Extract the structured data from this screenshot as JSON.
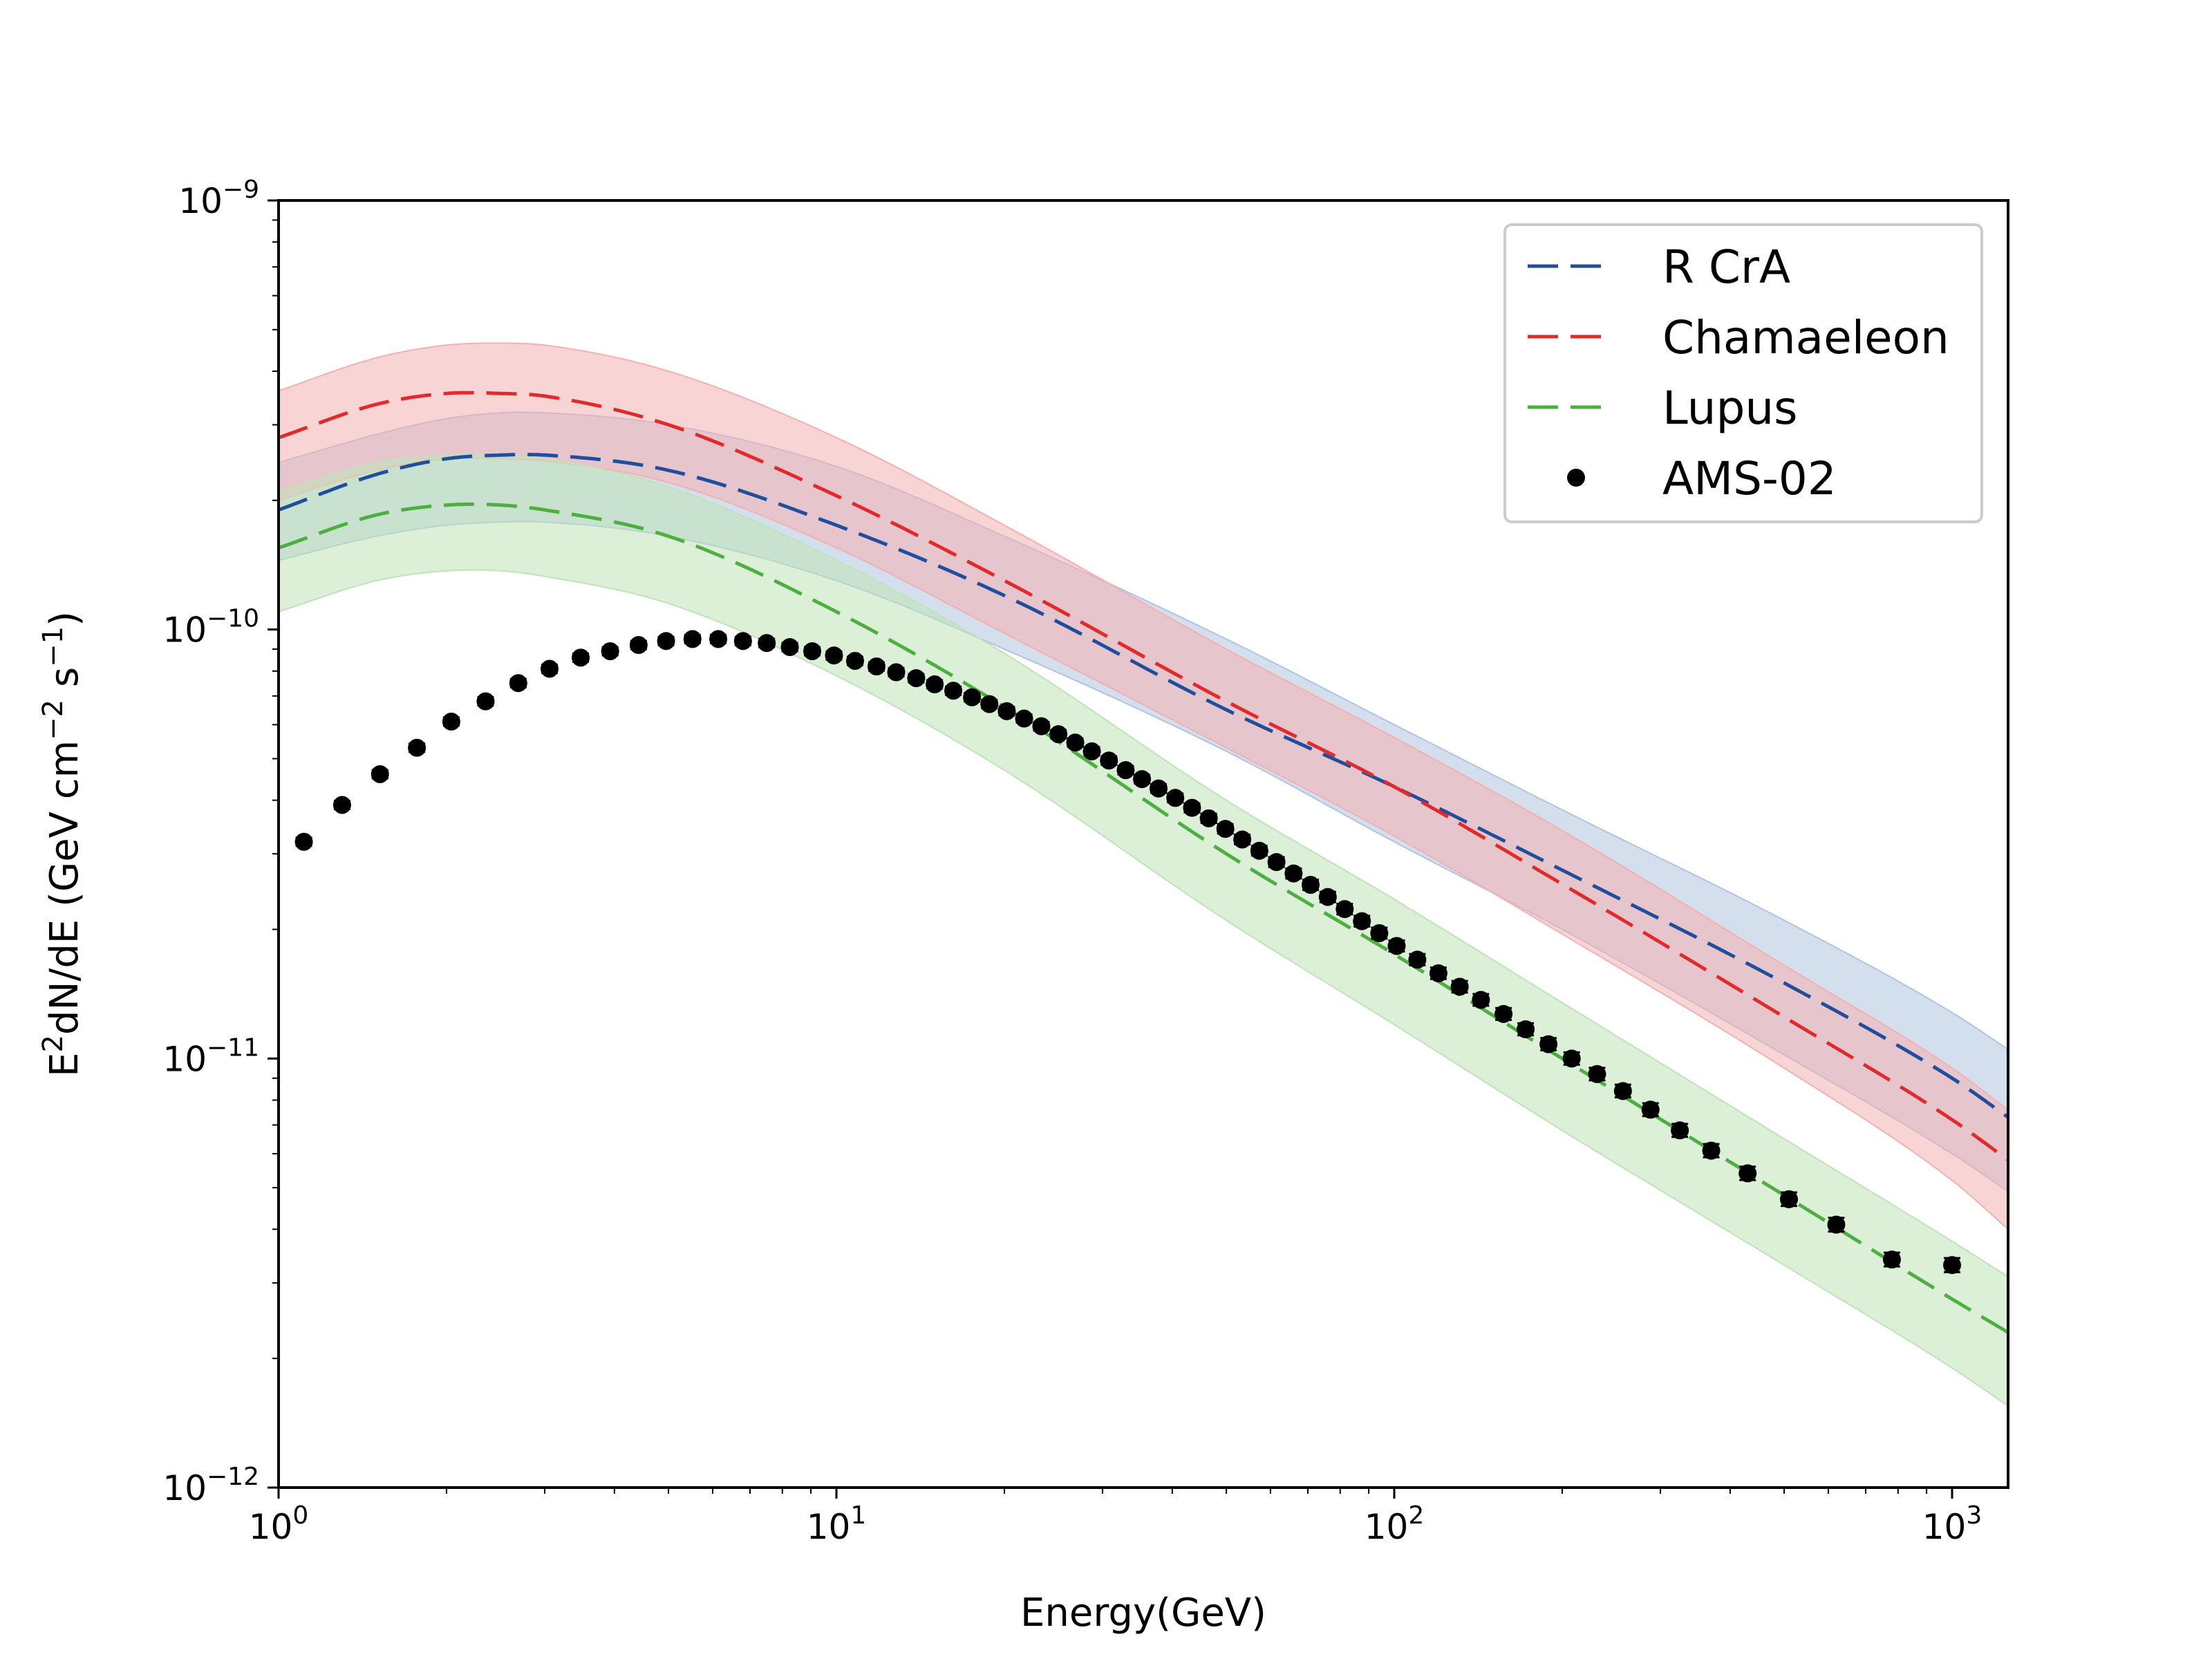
{
  "chart_data": {
    "type": "line",
    "xscale": "log",
    "yscale": "log",
    "xlabel": "Energy(GeV)",
    "ylabel": {
      "base": "E",
      "sup1": "2",
      "mid": "dN/dE (GeV cm",
      "sup2": "−2",
      "mid2": " s",
      "sup3": "−1",
      "end": ")"
    },
    "xlim": [
      1,
      1260
    ],
    "ylim": [
      1e-12,
      1e-09
    ],
    "xticks": [
      {
        "value": 1,
        "base": "10",
        "exp": "0"
      },
      {
        "value": 10,
        "base": "10",
        "exp": "1"
      },
      {
        "value": 100,
        "base": "10",
        "exp": "2"
      },
      {
        "value": 1000,
        "base": "10",
        "exp": "3"
      }
    ],
    "yticks": [
      {
        "value": 1e-12,
        "base": "10",
        "exp": "−12"
      },
      {
        "value": 1e-11,
        "base": "10",
        "exp": "−11"
      },
      {
        "value": 1e-10,
        "base": "10",
        "exp": "−10"
      },
      {
        "value": 1e-09,
        "base": "10",
        "exp": "−9"
      }
    ],
    "legend_position": "top-right",
    "series": [
      {
        "name": "R CrA",
        "color": "#1f4e9c",
        "band_color": "#b0c4e0",
        "x": [
          1,
          1.5,
          2,
          2.5,
          3,
          5,
          10,
          20,
          50,
          100,
          200,
          500,
          1000,
          1260
        ],
        "y": [
          1.9e-10,
          2.3e-10,
          2.5e-10,
          2.55e-10,
          2.55e-10,
          2.35e-10,
          1.75e-10,
          1.2e-10,
          6.5e-11,
          4.3e-11,
          2.75e-11,
          1.5e-11,
          9e-12,
          7.3e-12
        ],
        "y_low": [
          1.45e-10,
          1.65e-10,
          1.75e-10,
          1.78e-10,
          1.78e-10,
          1.65e-10,
          1.3e-10,
          9e-11,
          5.2e-11,
          3.2e-11,
          2e-11,
          1.02e-11,
          6e-12,
          4.9e-12
        ],
        "y_high": [
          2.45e-10,
          2.85e-10,
          3.1e-10,
          3.2e-10,
          3.2e-10,
          3e-10,
          2.4e-10,
          1.65e-10,
          9.5e-11,
          6e-11,
          3.8e-11,
          2.1e-11,
          1.28e-11,
          1.05e-11
        ]
      },
      {
        "name": "Chamaeleon",
        "color": "#e32a2a",
        "band_color": "#f4b0b0",
        "x": [
          1,
          1.5,
          2,
          2.5,
          3,
          5,
          10,
          20,
          50,
          100,
          200,
          500,
          1000,
          1260
        ],
        "y": [
          2.8e-10,
          3.35e-10,
          3.55e-10,
          3.55e-10,
          3.5e-10,
          3e-10,
          2.05e-10,
          1.3e-10,
          6.8e-11,
          4.3e-11,
          2.55e-11,
          1.25e-11,
          7.2e-12,
          5.8e-12
        ],
        "y_low": [
          2e-10,
          2.35e-10,
          2.5e-10,
          2.5e-10,
          2.47e-10,
          2.2e-10,
          1.55e-10,
          9.8e-11,
          5.3e-11,
          3.3e-11,
          1.95e-11,
          9.5e-12,
          5.2e-12,
          4e-12
        ],
        "y_high": [
          3.6e-10,
          4.3e-10,
          4.6e-10,
          4.65e-10,
          4.6e-10,
          4e-10,
          2.8e-10,
          1.75e-10,
          9e-11,
          5.6e-11,
          3.4e-11,
          1.65e-11,
          9.5e-12,
          7.6e-12
        ]
      },
      {
        "name": "Lupus",
        "color": "#4caf3f",
        "band_color": "#bfe3b8",
        "x": [
          1,
          1.5,
          2,
          2.5,
          3,
          5,
          10,
          20,
          50,
          100,
          200,
          500,
          1000,
          1260
        ],
        "y": [
          1.55e-10,
          1.85e-10,
          1.95e-10,
          1.95e-10,
          1.9e-10,
          1.65e-10,
          1.1e-10,
          6.6e-11,
          3e-11,
          1.75e-11,
          1e-11,
          4.8e-12,
          2.75e-12,
          2.3e-12
        ],
        "y_low": [
          1.1e-10,
          1.3e-10,
          1.37e-10,
          1.37e-10,
          1.33e-10,
          1.15e-10,
          7.8e-11,
          4.7e-11,
          2.1e-11,
          1.2e-11,
          6.8e-12,
          3.3e-12,
          1.9e-12,
          1.55e-12
        ],
        "y_high": [
          2.1e-10,
          2.45e-10,
          2.55e-10,
          2.55e-10,
          2.5e-10,
          2.15e-10,
          1.45e-10,
          8.8e-11,
          4e-11,
          2.35e-11,
          1.35e-11,
          6.5e-12,
          3.75e-12,
          3.1e-12
        ]
      }
    ],
    "points": {
      "name": "AMS-02",
      "color": "#000000",
      "x": [
        1.11,
        1.3,
        1.52,
        1.77,
        2.04,
        2.35,
        2.69,
        3.06,
        3.48,
        3.93,
        4.42,
        4.95,
        5.52,
        6.14,
        6.8,
        7.5,
        8.25,
        9.05,
        9.9,
        10.8,
        11.8,
        12.8,
        13.9,
        15.0,
        16.2,
        17.5,
        18.8,
        20.2,
        21.7,
        23.3,
        25.0,
        26.8,
        28.7,
        30.8,
        33.0,
        35.3,
        37.8,
        40.5,
        43.4,
        46.5,
        49.8,
        53.4,
        57.3,
        61.5,
        66.0,
        70.8,
        76.0,
        81.5,
        87.5,
        94.0,
        101,
        110,
        120,
        131,
        143,
        157,
        172,
        189,
        208,
        231,
        257,
        288,
        325,
        370,
        430,
        510,
        620,
        780,
        1000
      ],
      "y": [
        3.2e-11,
        3.9e-11,
        4.6e-11,
        5.3e-11,
        6.1e-11,
        6.8e-11,
        7.5e-11,
        8.1e-11,
        8.6e-11,
        8.9e-11,
        9.2e-11,
        9.4e-11,
        9.5e-11,
        9.5e-11,
        9.4e-11,
        9.3e-11,
        9.1e-11,
        8.9e-11,
        8.7e-11,
        8.45e-11,
        8.2e-11,
        7.95e-11,
        7.7e-11,
        7.45e-11,
        7.2e-11,
        6.95e-11,
        6.7e-11,
        6.45e-11,
        6.2e-11,
        5.95e-11,
        5.7e-11,
        5.45e-11,
        5.2e-11,
        4.95e-11,
        4.7e-11,
        4.48e-11,
        4.26e-11,
        4.05e-11,
        3.84e-11,
        3.63e-11,
        3.43e-11,
        3.24e-11,
        3.05e-11,
        2.87e-11,
        2.7e-11,
        2.54e-11,
        2.38e-11,
        2.23e-11,
        2.09e-11,
        1.96e-11,
        1.83e-11,
        1.7e-11,
        1.58e-11,
        1.47e-11,
        1.37e-11,
        1.27e-11,
        1.17e-11,
        1.08e-11,
        1e-11,
        9.2e-12,
        8.4e-12,
        7.6e-12,
        6.8e-12,
        6.1e-12,
        5.4e-12,
        4.7e-12,
        4.1e-12,
        3.4e-12,
        3.3e-12
      ]
    }
  }
}
